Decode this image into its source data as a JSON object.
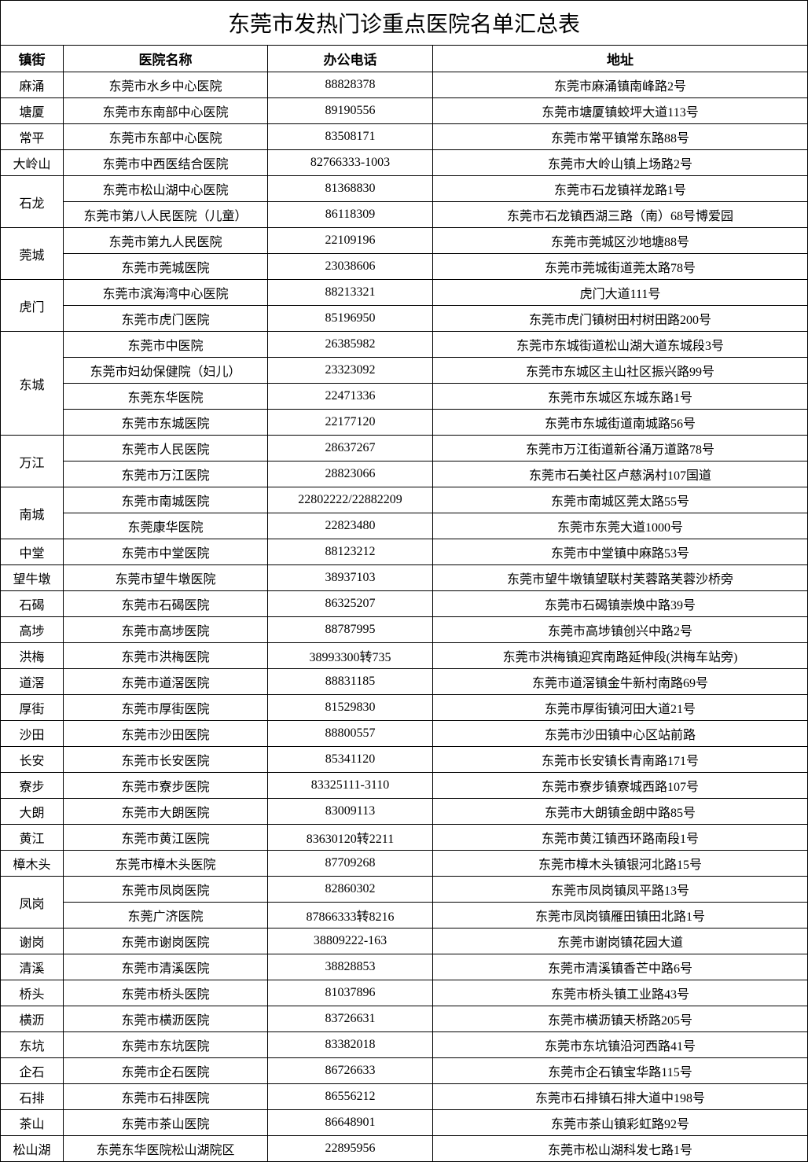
{
  "title": "东莞市发热门诊重点医院名单汇总表",
  "headers": {
    "town": "镇街",
    "hospital": "医院名称",
    "phone": "办公电话",
    "address": "地址"
  },
  "groups": [
    {
      "town": "麻涌",
      "rows": [
        {
          "hospital": "东莞市水乡中心医院",
          "phone": "88828378",
          "address": "东莞市麻涌镇南峰路2号"
        }
      ]
    },
    {
      "town": "塘厦",
      "rows": [
        {
          "hospital": "东莞市东南部中心医院",
          "phone": "89190556",
          "address": "东莞市塘厦镇蛟坪大道113号"
        }
      ]
    },
    {
      "town": "常平",
      "rows": [
        {
          "hospital": "东莞市东部中心医院",
          "phone": "83508171",
          "address": "东莞市常平镇常东路88号"
        }
      ]
    },
    {
      "town": "大岭山",
      "rows": [
        {
          "hospital": "东莞市中西医结合医院",
          "phone": "82766333-1003",
          "address": "东莞市大岭山镇上场路2号"
        }
      ]
    },
    {
      "town": "石龙",
      "rows": [
        {
          "hospital": "东莞市松山湖中心医院",
          "phone": "81368830",
          "address": "东莞市石龙镇祥龙路1号"
        },
        {
          "hospital": "东莞市第八人民医院（儿童）",
          "phone": "86118309",
          "address": "东莞市石龙镇西湖三路（南）68号博爱园"
        }
      ]
    },
    {
      "town": "莞城",
      "rows": [
        {
          "hospital": "东莞市第九人民医院",
          "phone": "22109196",
          "address": "东莞市莞城区沙地塘88号"
        },
        {
          "hospital": "东莞市莞城医院",
          "phone": "23038606",
          "address": "东莞市莞城街道莞太路78号"
        }
      ]
    },
    {
      "town": "虎门",
      "rows": [
        {
          "hospital": "东莞市滨海湾中心医院",
          "phone": "88213321",
          "address": "虎门大道111号"
        },
        {
          "hospital": "东莞市虎门医院",
          "phone": "85196950",
          "address": "东莞市虎门镇树田村树田路200号"
        }
      ]
    },
    {
      "town": "东城",
      "rows": [
        {
          "hospital": "东莞市中医院",
          "phone": "26385982",
          "address": "东莞市东城街道松山湖大道东城段3号"
        },
        {
          "hospital": "东莞市妇幼保健院（妇儿）",
          "phone": "23323092",
          "address": "东莞市东城区主山社区振兴路99号"
        },
        {
          "hospital": "东莞东华医院",
          "phone": "22471336",
          "address": "东莞市东城区东城东路1号"
        },
        {
          "hospital": "东莞市东城医院",
          "phone": "22177120",
          "address": "东莞市东城街道南城路56号"
        }
      ]
    },
    {
      "town": "万江",
      "rows": [
        {
          "hospital": "东莞市人民医院",
          "phone": "28637267",
          "address": "东莞市万江街道新谷涌万道路78号"
        },
        {
          "hospital": "东莞市万江医院",
          "phone": "28823066",
          "address": "东莞市石美社区卢慈涡村107国道"
        }
      ]
    },
    {
      "town": "南城",
      "rows": [
        {
          "hospital": "东莞市南城医院",
          "phone": "22802222/22882209",
          "address": "东莞市南城区莞太路55号"
        },
        {
          "hospital": "东莞康华医院",
          "phone": "22823480",
          "address": "东莞市东莞大道1000号"
        }
      ]
    },
    {
      "town": "中堂",
      "rows": [
        {
          "hospital": "东莞市中堂医院",
          "phone": "88123212",
          "address": "东莞市中堂镇中麻路53号"
        }
      ]
    },
    {
      "town": "望牛墩",
      "rows": [
        {
          "hospital": "东莞市望牛墩医院",
          "phone": "38937103",
          "address": "东莞市望牛墩镇望联村芙蓉路芙蓉沙桥旁"
        }
      ]
    },
    {
      "town": "石碣",
      "rows": [
        {
          "hospital": "东莞市石碣医院",
          "phone": "86325207",
          "address": "东莞市石碣镇崇焕中路39号"
        }
      ]
    },
    {
      "town": "高埗",
      "rows": [
        {
          "hospital": "东莞市高埗医院",
          "phone": "88787995",
          "address": "东莞市高埗镇创兴中路2号"
        }
      ]
    },
    {
      "town": "洪梅",
      "rows": [
        {
          "hospital": "东莞市洪梅医院",
          "phone": "38993300转735",
          "address": "东莞市洪梅镇迎宾南路延伸段(洪梅车站旁)"
        }
      ]
    },
    {
      "town": "道滘",
      "rows": [
        {
          "hospital": "东莞市道滘医院",
          "phone": "88831185",
          "address": "东莞市道滘镇金牛新村南路69号"
        }
      ]
    },
    {
      "town": "厚街",
      "rows": [
        {
          "hospital": "东莞市厚街医院",
          "phone": "81529830",
          "address": "东莞市厚街镇河田大道21号"
        }
      ]
    },
    {
      "town": "沙田",
      "rows": [
        {
          "hospital": "东莞市沙田医院",
          "phone": "88800557",
          "address": "东莞市沙田镇中心区站前路"
        }
      ]
    },
    {
      "town": "长安",
      "rows": [
        {
          "hospital": "东莞市长安医院",
          "phone": "85341120",
          "address": "东莞市长安镇长青南路171号"
        }
      ]
    },
    {
      "town": "寮步",
      "rows": [
        {
          "hospital": "东莞市寮步医院",
          "phone": "83325111-3110",
          "address": "东莞市寮步镇寮城西路107号"
        }
      ]
    },
    {
      "town": "大朗",
      "rows": [
        {
          "hospital": "东莞市大朗医院",
          "phone": "83009113",
          "address": "东莞市大朗镇金朗中路85号"
        }
      ]
    },
    {
      "town": "黄江",
      "rows": [
        {
          "hospital": "东莞市黄江医院",
          "phone": "83630120转2211",
          "address": "东莞市黄江镇西环路南段1号"
        }
      ]
    },
    {
      "town": "樟木头",
      "rows": [
        {
          "hospital": "东莞市樟木头医院",
          "phone": "87709268",
          "address": "东莞市樟木头镇银河北路15号"
        }
      ]
    },
    {
      "town": "凤岗",
      "rows": [
        {
          "hospital": "东莞市凤岗医院",
          "phone": "82860302",
          "address": "东莞市凤岗镇凤平路13号"
        },
        {
          "hospital": "东莞广济医院",
          "phone": "87866333转8216",
          "address": "东莞市凤岗镇雁田镇田北路1号"
        }
      ]
    },
    {
      "town": "谢岗",
      "rows": [
        {
          "hospital": "东莞市谢岗医院",
          "phone": "38809222-163",
          "address": "东莞市谢岗镇花园大道"
        }
      ]
    },
    {
      "town": "清溪",
      "rows": [
        {
          "hospital": "东莞市清溪医院",
          "phone": "38828853",
          "address": "东莞市清溪镇香芒中路6号"
        }
      ]
    },
    {
      "town": "桥头",
      "rows": [
        {
          "hospital": "东莞市桥头医院",
          "phone": "81037896",
          "address": "东莞市桥头镇工业路43号"
        }
      ]
    },
    {
      "town": "横沥",
      "rows": [
        {
          "hospital": "东莞市横沥医院",
          "phone": "83726631",
          "address": "东莞市横沥镇天桥路205号"
        }
      ]
    },
    {
      "town": "东坑",
      "rows": [
        {
          "hospital": "东莞市东坑医院",
          "phone": "83382018",
          "address": "东莞市东坑镇沿河西路41号"
        }
      ]
    },
    {
      "town": "企石",
      "rows": [
        {
          "hospital": "东莞市企石医院",
          "phone": "86726633",
          "address": "东莞市企石镇宝华路115号"
        }
      ]
    },
    {
      "town": "石排",
      "rows": [
        {
          "hospital": "东莞市石排医院",
          "phone": "86556212",
          "address": "东莞市石排镇石排大道中198号"
        }
      ]
    },
    {
      "town": "茶山",
      "rows": [
        {
          "hospital": "东莞市茶山医院",
          "phone": "86648901",
          "address": "东莞市茶山镇彩虹路92号"
        }
      ]
    },
    {
      "town": "松山湖",
      "rows": [
        {
          "hospital": "东莞东华医院松山湖院区",
          "phone": "22895956",
          "address": "东莞市松山湖科发七路1号"
        }
      ]
    }
  ]
}
